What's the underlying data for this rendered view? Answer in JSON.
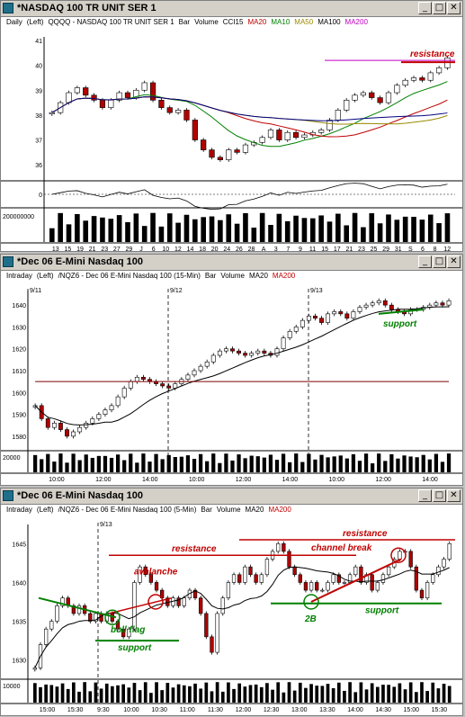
{
  "windows": [
    {
      "title": "*NASDAQ 100 TR UNIT SER 1",
      "legend": [
        "Daily",
        "(Left)",
        "QQQQ - NASDAQ 100 TR UNIT SER 1",
        "Bar",
        "Volume",
        "CCI15",
        "MA20",
        "MA10",
        "MA50",
        "MA100",
        "MA200"
      ],
      "legend_colors": [
        "#000",
        "#000",
        "#000",
        "#000",
        "#000",
        "#000",
        "#c00000",
        "#008000",
        "#9a8a00",
        "#000",
        "#c000c0"
      ],
      "price_axis": [
        "41",
        "40",
        "39",
        "38",
        "37",
        "36"
      ],
      "cci_axis": [
        "0"
      ],
      "volume_axis": [
        "200000000"
      ],
      "time_axis": [
        "13",
        "15",
        "19",
        "21",
        "23",
        "27",
        "29",
        "J",
        "6",
        "10",
        "12",
        "14",
        "18",
        "20",
        "24",
        "26",
        "28",
        "A",
        "3",
        "7",
        "9",
        "11",
        "15",
        "17",
        "21",
        "23",
        "25",
        "29",
        "31",
        "S",
        "6",
        "8",
        "12"
      ],
      "annotations": [
        "resistance"
      ],
      "chart_data": {
        "type": "ohlc",
        "title": "QQQQ - NASDAQ 100 TR UNIT SER 1",
        "ylim": [
          35.5,
          41
        ],
        "closes": [
          38.1,
          38.5,
          38.9,
          39.1,
          38.8,
          38.6,
          38.3,
          38.6,
          38.9,
          38.7,
          39.0,
          39.3,
          38.6,
          38.3,
          38.1,
          38.2,
          37.8,
          37.0,
          36.6,
          36.3,
          36.2,
          36.6,
          36.5,
          36.8,
          36.9,
          37.1,
          37.4,
          37.0,
          37.3,
          37.1,
          37.2,
          37.3,
          37.4,
          37.8,
          38.2,
          38.6,
          38.8,
          38.9,
          38.7,
          38.5,
          38.9,
          39.2,
          39.4,
          39.5,
          39.4,
          39.7,
          39.9,
          40.3
        ],
        "resistance": 40.2
      }
    },
    {
      "title": "*Dec 06  E-Mini Nasdaq 100",
      "legend": [
        "Intraday",
        "(Left)",
        "/NQZ6 - Dec 06  E-Mini Nasdaq 100 (15-Min)",
        "Bar",
        "Volume",
        "MA20",
        "MA200"
      ],
      "legend_colors": [
        "#000",
        "#000",
        "#000",
        "#000",
        "#000",
        "#000",
        "#c00000"
      ],
      "session_labels": [
        "9/11",
        "9/12",
        "9/13"
      ],
      "price_axis": [
        "1640",
        "1630",
        "1620",
        "1610",
        "1600",
        "1590",
        "1580"
      ],
      "volume_axis": [
        "20000"
      ],
      "time_axis": [
        "10:00",
        "12:00",
        "14:00",
        "10:00",
        "12:00",
        "14:00",
        "10:00",
        "12:00",
        "14:00"
      ],
      "annotations": [
        "support"
      ],
      "chart_data": {
        "type": "ohlc",
        "title": "/NQZ6 - Dec 06 E-Mini Nasdaq 100 (15-Min)",
        "ylim": [
          1575,
          1645
        ],
        "closes": [
          1594,
          1588,
          1584,
          1586,
          1583,
          1580,
          1582,
          1584,
          1586,
          1588,
          1590,
          1592,
          1594,
          1598,
          1602,
          1605,
          1607,
          1606,
          1605,
          1604,
          1603,
          1602,
          1604,
          1606,
          1608,
          1610,
          1612,
          1614,
          1617,
          1619,
          1620,
          1619,
          1618,
          1617,
          1618,
          1619,
          1618,
          1617,
          1620,
          1625,
          1628,
          1630,
          1633,
          1635,
          1634,
          1632,
          1636,
          1637,
          1636,
          1634,
          1637,
          1639,
          1640,
          1641,
          1642,
          1640,
          1638,
          1637,
          1636,
          1638,
          1638,
          1639,
          1640,
          1641,
          1640,
          1642
        ]
      }
    },
    {
      "title": "*Dec 06  E-Mini Nasdaq 100",
      "legend": [
        "Intraday",
        "(Left)",
        "/NQZ6 - Dec 06  E-Mini Nasdaq 100 (5-Min)",
        "Bar",
        "Volume",
        "MA20",
        "MA200"
      ],
      "legend_colors": [
        "#000",
        "#000",
        "#000",
        "#000",
        "#000",
        "#000",
        "#c00000"
      ],
      "session_labels": [
        "9/13"
      ],
      "price_axis": [
        "1645",
        "1640",
        "1635",
        "1630"
      ],
      "volume_axis": [
        "10000"
      ],
      "time_axis": [
        "15:00",
        "15:30",
        "9:30",
        "10:00",
        "10:30",
        "11:00",
        "11:30",
        "12:00",
        "12:30",
        "13:00",
        "13:30",
        "14:00",
        "14:30",
        "15:00",
        "15:30"
      ],
      "annotations": [
        "resistance",
        "avalanche",
        "bull flag",
        "support",
        "resistance",
        "channel break",
        "2B",
        "support"
      ],
      "chart_data": {
        "type": "ohlc",
        "title": "/NQZ6 - Dec 06 E-Mini Nasdaq 100 (5-Min)",
        "ylim": [
          1628,
          1647
        ],
        "closes": [
          1629,
          1632,
          1634,
          1635,
          1637,
          1638,
          1637,
          1636,
          1637,
          1636,
          1635,
          1636,
          1635,
          1636,
          1635,
          1634,
          1633,
          1634,
          1640,
          1642,
          1641,
          1640,
          1639,
          1638,
          1637,
          1638,
          1637,
          1638,
          1639,
          1638,
          1636,
          1633,
          1631,
          1636,
          1638,
          1640,
          1641,
          1640,
          1642,
          1641,
          1640,
          1641,
          1643,
          1644,
          1645,
          1644,
          1642,
          1641,
          1640,
          1639,
          1640,
          1639,
          1639,
          1640,
          1641,
          1640,
          1640,
          1641,
          1642,
          1640,
          1641,
          1639,
          1640,
          1641,
          1642,
          1643,
          1644,
          1644,
          1642,
          1639,
          1638,
          1640,
          1641,
          1642,
          1643,
          1645
        ]
      }
    }
  ]
}
